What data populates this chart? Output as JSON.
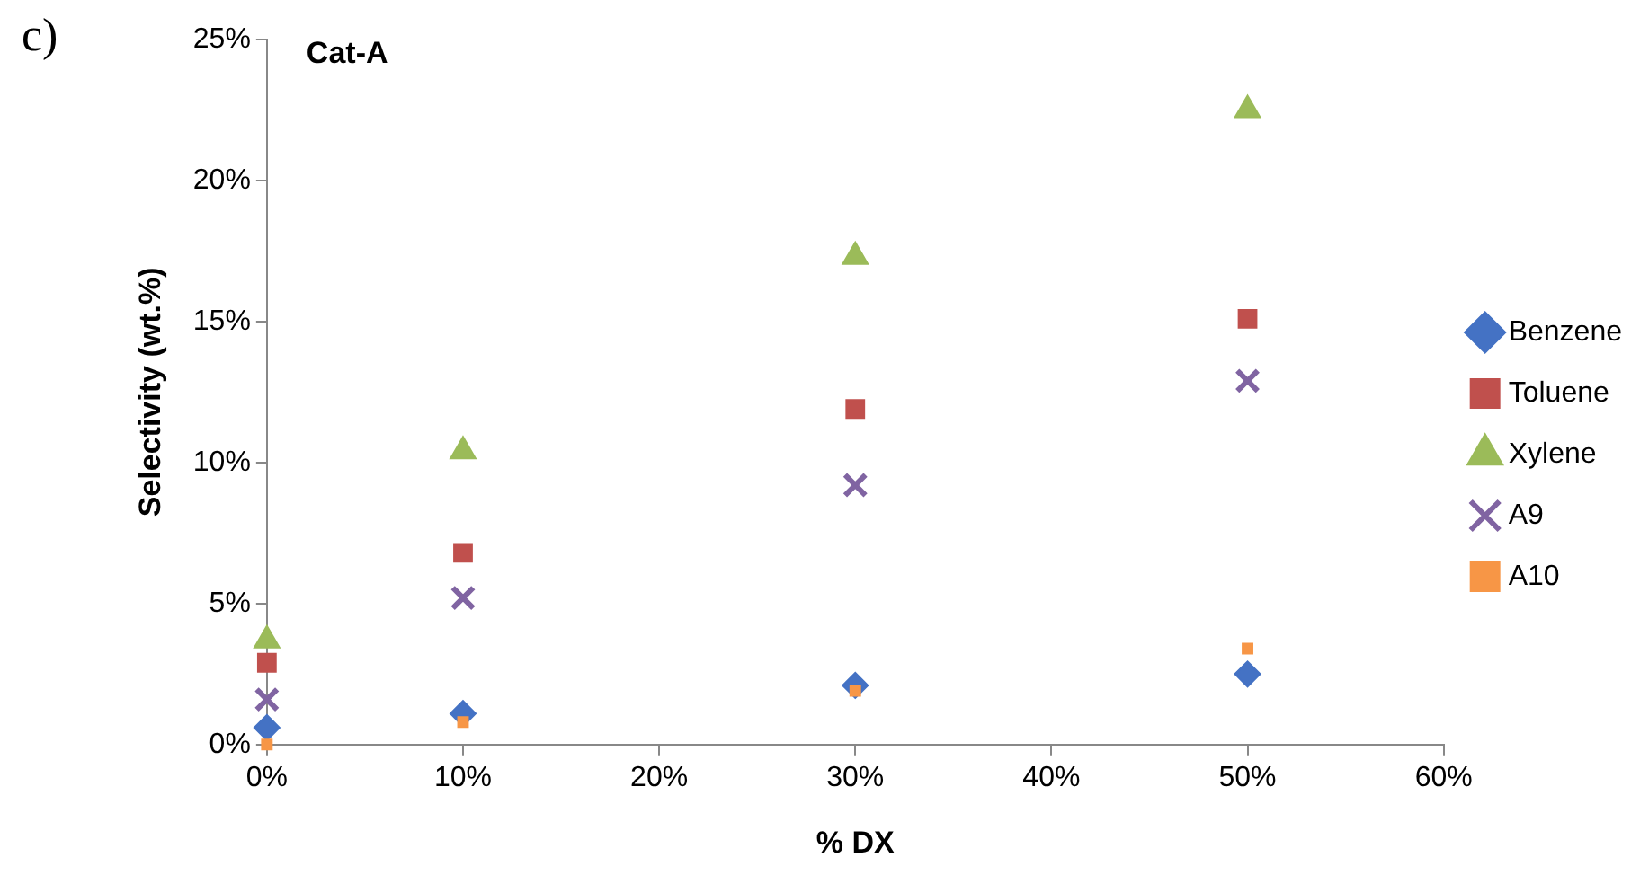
{
  "chart_data": {
    "type": "scatter",
    "title": "Cat-A",
    "xlabel": "% DX",
    "ylabel": "Selectivity (wt.%)",
    "annotations": [
      "c)"
    ],
    "x": [
      0,
      10,
      30,
      50
    ],
    "series": [
      {
        "name": "Benzene",
        "color": "#4472c4",
        "marker": "diamond",
        "values": [
          0.6,
          1.1,
          2.1,
          2.5
        ]
      },
      {
        "name": "Toluene",
        "color": "#c0504d",
        "marker": "square",
        "values": [
          2.9,
          6.8,
          11.9,
          15.1
        ]
      },
      {
        "name": "Xylene",
        "color": "#9bbb59",
        "marker": "triangle",
        "values": [
          3.7,
          10.4,
          17.3,
          22.5
        ]
      },
      {
        "name": "A9",
        "color": "#8064a2",
        "marker": "cross",
        "values": [
          1.6,
          5.2,
          9.2,
          12.9
        ]
      },
      {
        "name": "A10",
        "color": "#f79646",
        "marker": "square",
        "values": [
          0.0,
          0.8,
          1.9,
          3.4
        ]
      }
    ],
    "xlim": [
      0,
      60
    ],
    "xticks": [
      {
        "value": 0,
        "label": "0%"
      },
      {
        "value": 10,
        "label": "10%"
      },
      {
        "value": 20,
        "label": "20%"
      },
      {
        "value": 30,
        "label": "30%"
      },
      {
        "value": 40,
        "label": "40%"
      },
      {
        "value": 50,
        "label": "50%"
      },
      {
        "value": 60,
        "label": "60%"
      }
    ],
    "ylim": [
      0,
      25
    ],
    "yticks": [
      {
        "value": 0,
        "label": "0%"
      },
      {
        "value": 5,
        "label": "5%"
      },
      {
        "value": 10,
        "label": "10%"
      },
      {
        "value": 15,
        "label": "15%"
      },
      {
        "value": 20,
        "label": "20%"
      },
      {
        "value": 25,
        "label": "25%"
      }
    ],
    "grid": false,
    "legend": "right"
  }
}
